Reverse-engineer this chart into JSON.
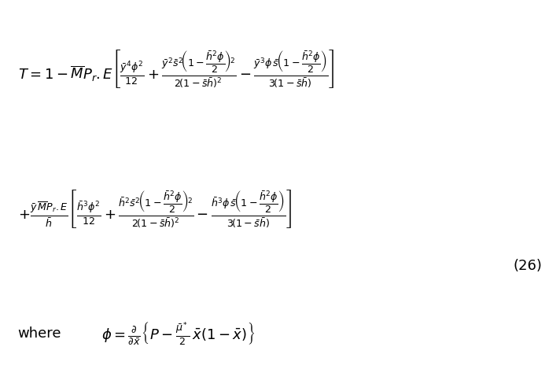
{
  "equation1": "T = 1 - \\overline{M}P_r.E\\left[\\frac{\\bar{y}^4\\phi^2}{12} + \\frac{\\bar{y}^2\\bar{s}^2\\!\\left(1-\\dfrac{\\bar{h}^2\\phi}{2}\\right)^{\\!2}}{2\\left(1-\\bar{s}\\bar{h}\\right)^2} - \\frac{\\bar{y}^3\\phi\\,\\bar{s}\\!\\left(1-\\dfrac{\\bar{h}^2\\phi}{2}\\right)}{3\\left(1-\\bar{s}\\bar{h}\\right)}\\right]",
  "equation2": "+ \\frac{\\bar{y}\\,\\overline{M}P_r.E}{\\bar{h}}\\left[\\frac{\\bar{h}^3\\phi^2}{12} + \\frac{\\bar{h}^2\\bar{s}^2\\!\\left(1-\\dfrac{\\bar{h}^2\\phi}{2}\\right)^{\\!2}}{2\\left(1-\\bar{s}\\bar{h}\\right)^2} - \\frac{\\bar{h}^3\\phi\\,\\bar{s}\\!\\left(1-\\dfrac{\\bar{h}^2\\phi}{2}\\right)}{3\\left(1-\\bar{s}\\bar{h}\\right)}\\right]",
  "equation3": "\\phi = \\frac{\\partial}{\\partial\\bar{x}}\\left\\{P - \\frac{\\bar{\\mu}^*}{2}\\,\\bar{x}(1-\\bar{x})\\right\\}",
  "label": "(26)",
  "where_text": "where",
  "bg_color": "#ffffff",
  "text_color": "#000000",
  "fontsize": 13
}
